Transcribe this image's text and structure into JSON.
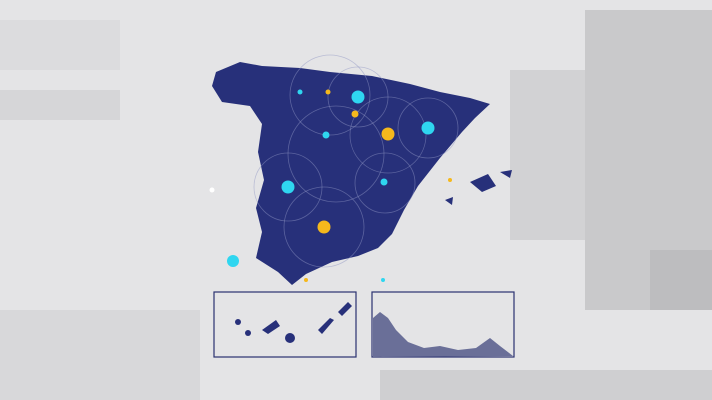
{
  "colors": {
    "background": "#e4e4e6",
    "land": "#27307a",
    "marker_yellow": "#f5b81c",
    "marker_cyan": "#2fd6f0",
    "inset_border": "#2a3170"
  },
  "markers": [
    {
      "color": "cyan",
      "size": "large"
    },
    {
      "color": "cyan",
      "size": "small"
    },
    {
      "color": "yellow",
      "size": "small"
    },
    {
      "color": "yellow",
      "size": "medium"
    },
    {
      "color": "cyan",
      "size": "large"
    },
    {
      "color": "yellow",
      "size": "large"
    },
    {
      "color": "cyan",
      "size": "medium"
    },
    {
      "color": "cyan",
      "size": "medium"
    },
    {
      "color": "yellow",
      "size": "large"
    },
    {
      "color": "cyan",
      "size": "large"
    }
  ],
  "insets": [
    "canary-islands",
    "ceuta-melilla-coast"
  ]
}
